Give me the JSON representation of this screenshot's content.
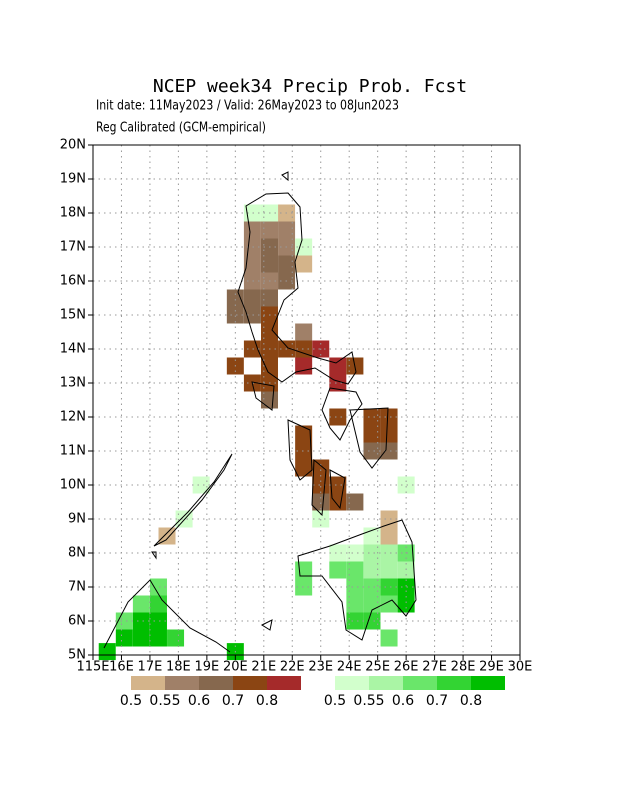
{
  "chart_data": {
    "type": "grid-map",
    "title": "NCEP week34 Precip Prob. Fcst",
    "subtitle_1": "Init date: 11May2023 / Valid: 26May2023 to 08Jun2023",
    "subtitle_2": "Reg Calibrated (GCM-empirical)",
    "xlim": [
      115,
      130
    ],
    "ylim": [
      5,
      20
    ],
    "xticks": [
      {
        "value": 115,
        "label": "115E"
      },
      {
        "value": 116,
        "label": "16E"
      },
      {
        "value": 117,
        "label": "17E"
      },
      {
        "value": 118,
        "label": "18E"
      },
      {
        "value": 119,
        "label": "19E"
      },
      {
        "value": 120,
        "label": "20E"
      },
      {
        "value": 121,
        "label": "21E"
      },
      {
        "value": 122,
        "label": "22E"
      },
      {
        "value": 123,
        "label": "23E"
      },
      {
        "value": 124,
        "label": "24E"
      },
      {
        "value": 125,
        "label": "25E"
      },
      {
        "value": 126,
        "label": "26E"
      },
      {
        "value": 127,
        "label": "27E"
      },
      {
        "value": 128,
        "label": "28E"
      },
      {
        "value": 129,
        "label": "29E"
      },
      {
        "value": 130,
        "label": "30E"
      }
    ],
    "yticks": [
      {
        "value": 5,
        "label": "5N"
      },
      {
        "value": 6,
        "label": "6N"
      },
      {
        "value": 7,
        "label": "7N"
      },
      {
        "value": 8,
        "label": "8N"
      },
      {
        "value": 9,
        "label": "9N"
      },
      {
        "value": 10,
        "label": "10N"
      },
      {
        "value": 11,
        "label": "11N"
      },
      {
        "value": 12,
        "label": "12N"
      },
      {
        "value": 13,
        "label": "13N"
      },
      {
        "value": 14,
        "label": "14N"
      },
      {
        "value": 15,
        "label": "15N"
      },
      {
        "value": 16,
        "label": "16N"
      },
      {
        "value": 17,
        "label": "17N"
      },
      {
        "value": 18,
        "label": "18N"
      },
      {
        "value": 19,
        "label": "19N"
      },
      {
        "value": 20,
        "label": "20N"
      }
    ],
    "grid": true,
    "dry_colorbar": {
      "colors": [
        "#d4b48a",
        "#a08068",
        "#86684e",
        "#8b4513",
        "#a52a2a"
      ],
      "labels": [
        0.5,
        0.55,
        0.6,
        0.7,
        0.8
      ]
    },
    "wet_colorbar": {
      "colors": [
        "#d2ffcc",
        "#aaf5a5",
        "#6ae66a",
        "#33d433",
        "#00be00"
      ],
      "labels": [
        0.5,
        0.55,
        0.6,
        0.7,
        0.8
      ]
    },
    "cells": {
      "dry": [
        [
          121.8,
          18.0,
          0.5
        ],
        [
          120.6,
          17.5,
          0.55
        ],
        [
          121.2,
          17.5,
          0.55
        ],
        [
          121.8,
          17.5,
          0.55
        ],
        [
          120.6,
          17.0,
          0.55
        ],
        [
          121.2,
          17.0,
          0.6
        ],
        [
          121.8,
          17.0,
          0.55
        ],
        [
          120.6,
          16.5,
          0.55
        ],
        [
          121.2,
          16.5,
          0.6
        ],
        [
          121.8,
          16.5,
          0.6
        ],
        [
          122.4,
          16.5,
          0.5
        ],
        [
          120.6,
          16.0,
          0.55
        ],
        [
          121.2,
          16.0,
          0.55
        ],
        [
          121.8,
          16.0,
          0.6
        ],
        [
          120.0,
          15.5,
          0.6
        ],
        [
          120.6,
          15.5,
          0.6
        ],
        [
          121.2,
          15.5,
          0.6
        ],
        [
          120.0,
          15.0,
          0.6
        ],
        [
          120.6,
          15.0,
          0.6
        ],
        [
          121.2,
          15.0,
          0.7
        ],
        [
          121.2,
          14.5,
          0.7
        ],
        [
          122.4,
          14.5,
          0.55
        ],
        [
          120.6,
          14.0,
          0.7
        ],
        [
          121.2,
          14.0,
          0.7
        ],
        [
          121.8,
          14.0,
          0.7
        ],
        [
          122.4,
          14.0,
          0.7
        ],
        [
          123.0,
          14.0,
          0.8
        ],
        [
          120.0,
          13.5,
          0.7
        ],
        [
          121.2,
          13.5,
          0.7
        ],
        [
          122.4,
          13.5,
          0.8
        ],
        [
          123.6,
          13.5,
          0.8
        ],
        [
          124.2,
          13.5,
          0.7
        ],
        [
          120.6,
          13.0,
          0.7
        ],
        [
          121.2,
          13.0,
          0.7
        ],
        [
          123.6,
          13.0,
          0.8
        ],
        [
          121.2,
          12.5,
          0.6
        ],
        [
          123.6,
          12.0,
          0.7
        ],
        [
          124.8,
          12.0,
          0.7
        ],
        [
          125.4,
          12.0,
          0.7
        ],
        [
          122.4,
          11.5,
          0.7
        ],
        [
          124.8,
          11.5,
          0.7
        ],
        [
          125.4,
          11.5,
          0.7
        ],
        [
          122.4,
          11.0,
          0.7
        ],
        [
          124.8,
          11.0,
          0.6
        ],
        [
          125.4,
          11.0,
          0.6
        ],
        [
          122.4,
          10.5,
          0.7
        ],
        [
          123.0,
          10.5,
          0.7
        ],
        [
          123.0,
          10.0,
          0.7
        ],
        [
          123.6,
          10.0,
          0.7
        ],
        [
          123.0,
          9.5,
          0.6
        ],
        [
          123.6,
          9.5,
          0.7
        ],
        [
          124.2,
          9.5,
          0.6
        ],
        [
          125.4,
          9.0,
          0.5
        ],
        [
          125.4,
          8.5,
          0.5
        ],
        [
          117.6,
          8.5,
          0.5
        ]
      ],
      "wet": [
        [
          120.6,
          18.0,
          0.5
        ],
        [
          121.2,
          18.0,
          0.5
        ],
        [
          122.4,
          17.0,
          0.5
        ],
        [
          126.0,
          10.0,
          0.5
        ],
        [
          123.0,
          9.0,
          0.5
        ],
        [
          118.2,
          9.0,
          0.5
        ],
        [
          118.8,
          10.0,
          0.5
        ],
        [
          124.8,
          8.5,
          0.5
        ],
        [
          123.6,
          8.0,
          0.5
        ],
        [
          124.2,
          8.0,
          0.5
        ],
        [
          124.8,
          8.0,
          0.55
        ],
        [
          125.4,
          8.0,
          0.55
        ],
        [
          126.0,
          8.0,
          0.6
        ],
        [
          122.4,
          7.5,
          0.6
        ],
        [
          123.6,
          7.5,
          0.6
        ],
        [
          124.2,
          7.5,
          0.6
        ],
        [
          124.8,
          7.5,
          0.55
        ],
        [
          125.4,
          7.5,
          0.55
        ],
        [
          126.0,
          7.5,
          0.55
        ],
        [
          122.4,
          7.0,
          0.6
        ],
        [
          124.2,
          7.0,
          0.6
        ],
        [
          124.8,
          7.0,
          0.6
        ],
        [
          125.4,
          7.0,
          0.7
        ],
        [
          126.0,
          7.0,
          0.8
        ],
        [
          124.2,
          6.5,
          0.6
        ],
        [
          124.8,
          6.5,
          0.6
        ],
        [
          125.4,
          6.5,
          0.6
        ],
        [
          126.0,
          6.5,
          0.8
        ],
        [
          124.2,
          6.0,
          0.7
        ],
        [
          124.8,
          6.0,
          0.7
        ],
        [
          125.4,
          5.5,
          0.6
        ],
        [
          117.3,
          7.0,
          0.6
        ],
        [
          116.7,
          6.5,
          0.6
        ],
        [
          117.3,
          6.5,
          0.7
        ],
        [
          116.1,
          6.0,
          0.6
        ],
        [
          116.7,
          6.0,
          0.8
        ],
        [
          117.3,
          6.0,
          0.8
        ],
        [
          116.1,
          5.5,
          0.8
        ],
        [
          116.7,
          5.5,
          0.8
        ],
        [
          117.3,
          5.5,
          0.8
        ],
        [
          117.9,
          5.5,
          0.7
        ],
        [
          115.5,
          5.1,
          0.8
        ],
        [
          120.0,
          5.1,
          0.8
        ]
      ]
    }
  }
}
